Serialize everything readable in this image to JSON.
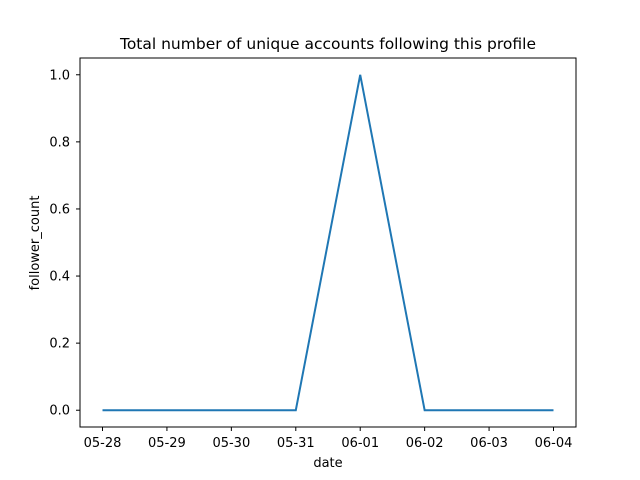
{
  "chart_data": {
    "type": "line",
    "title": "Total number of unique accounts following this profile",
    "xlabel": "date",
    "ylabel": "follower_count",
    "x": [
      "05-28",
      "05-29",
      "05-30",
      "05-31",
      "06-01",
      "06-02",
      "06-03",
      "06-04"
    ],
    "series": [
      {
        "values": [
          0,
          0,
          0,
          0,
          1,
          0,
          0,
          0
        ],
        "color": "#1f77b4"
      }
    ],
    "ylim": [
      -0.05,
      1.05
    ],
    "yticks": [
      0.0,
      0.2,
      0.4,
      0.6,
      0.8,
      1.0
    ],
    "ytick_labels": [
      "0.0",
      "0.2",
      "0.4",
      "0.6",
      "0.8",
      "1.0"
    ],
    "grid": false,
    "legend": "none"
  }
}
